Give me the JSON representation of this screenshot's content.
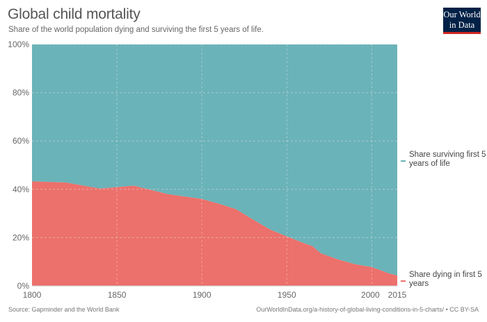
{
  "header": {
    "title": "Global child mortality",
    "subtitle": "Share of the world population dying and surviving the first 5 years of life.",
    "logo_line1": "Our World",
    "logo_line2": "in Data"
  },
  "footer": {
    "source": "Source: Gapminder and the World Bank",
    "url": "OurWorldInData.org/a-history-of-global-living-conditions-in-5-charts/ • CC BY-SA"
  },
  "colors": {
    "surviving": "#6ab3b8",
    "dying": "#ec706b",
    "grid": "#dddddd",
    "tick_text": "#666666"
  },
  "chart_data": {
    "type": "area",
    "stacked": true,
    "title": "Global child mortality",
    "subtitle": "Share of the world population dying and surviving the first 5 years of life.",
    "xlim": [
      1800,
      2015
    ],
    "ylim": [
      0,
      100
    ],
    "x_ticks": [
      1800,
      1850,
      1900,
      1950,
      2000,
      2015
    ],
    "y_ticks": [
      0,
      20,
      40,
      60,
      80,
      100
    ],
    "y_tick_labels": [
      "0%",
      "20%",
      "40%",
      "60%",
      "80%",
      "100%"
    ],
    "grid": "horizontal dashed",
    "legend_placement": "right, inline labels",
    "x": [
      1800,
      1820,
      1840,
      1860,
      1880,
      1900,
      1910,
      1920,
      1930,
      1940,
      1950,
      1960,
      1965,
      1970,
      1980,
      1990,
      2000,
      2010,
      2015
    ],
    "series": [
      {
        "name": "Share dying in first 5 years",
        "values": [
          43.3,
          42.8,
          40.3,
          41.5,
          38.0,
          36.0,
          34.0,
          31.8,
          27.5,
          23.4,
          20.5,
          17.7,
          16.5,
          13.5,
          11.0,
          9.0,
          7.8,
          5.2,
          4.3
        ]
      },
      {
        "name": "Share surviving first 5 years of life",
        "values": [
          56.7,
          57.2,
          59.7,
          58.5,
          62.0,
          64.0,
          66.0,
          68.2,
          72.5,
          76.6,
          79.5,
          82.3,
          83.5,
          86.5,
          89.0,
          91.0,
          92.2,
          94.8,
          95.7
        ]
      }
    ],
    "legend": [
      {
        "label": "Share surviving first 5 years of life",
        "line1": "Share surviving first 5",
        "line2": "years of life"
      },
      {
        "label": "Share dying in first 5 years",
        "line1": "Share dying in first 5",
        "line2": "years"
      }
    ]
  }
}
